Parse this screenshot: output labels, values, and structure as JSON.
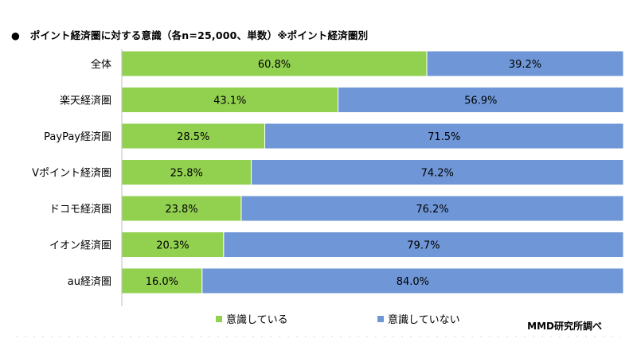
{
  "title": "●　ポイント経済圏に対する意識（各n=25,000、単数）※ポイント経済圏別",
  "credit": "MMD研究所調べ",
  "colors": {
    "aware": "#92d050",
    "unaware": "#6f96d6",
    "axis": "#bfbfbf"
  },
  "chart_data": {
    "type": "bar",
    "orientation": "horizontal",
    "stacked": true,
    "percent": true,
    "title": "●　ポイント経済圏に対する意識（各n=25,000、単数）※ポイント経済圏別",
    "categories": [
      "全体",
      "楽天経済圏",
      "PayPay経済圏",
      "Vポイント経済圏",
      "ドコモ経済圏",
      "イオン経済圏",
      "au経済圏"
    ],
    "series": [
      {
        "name": "意識している",
        "values": [
          60.8,
          43.1,
          28.5,
          25.8,
          23.8,
          20.3,
          16.0
        ]
      },
      {
        "name": "意識していない",
        "values": [
          39.2,
          56.9,
          71.5,
          74.2,
          76.2,
          79.7,
          84.0
        ]
      }
    ],
    "xlim": [
      0,
      100
    ],
    "legend_position": "bottom",
    "grid": false
  }
}
